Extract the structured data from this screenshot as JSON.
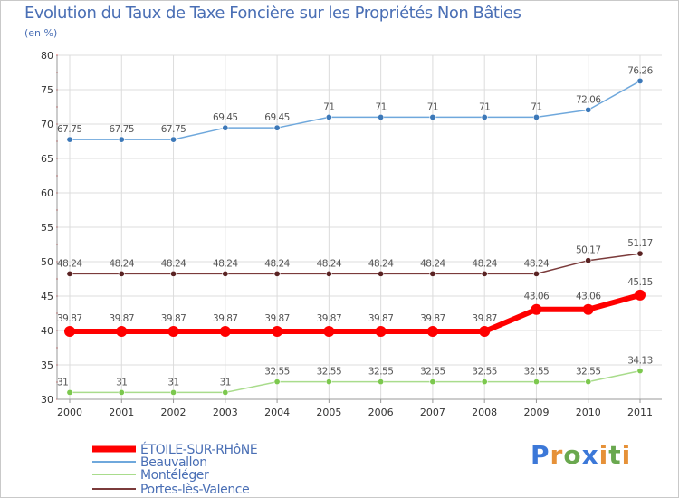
{
  "chart_data": {
    "type": "line",
    "title": "Evolution du Taux de Taxe Foncière sur les Propriétés Non Bâties",
    "ylabel": "(en %)",
    "xlabel": "",
    "ylim": [
      30,
      80
    ],
    "yticks": [
      30,
      35,
      40,
      45,
      50,
      55,
      60,
      65,
      70,
      75,
      80
    ],
    "categories": [
      "2000",
      "2001",
      "2002",
      "2003",
      "2004",
      "2005",
      "2006",
      "2007",
      "2008",
      "2009",
      "2010",
      "2011"
    ],
    "grid": true,
    "legend_position": "bottom-left",
    "series": [
      {
        "name": "Beauvallon",
        "color": "#6fa8dc",
        "marker": "#3c78b8",
        "values": [
          67.75,
          67.75,
          67.75,
          69.45,
          69.45,
          71,
          71,
          71,
          71,
          71,
          72.06,
          76.26
        ],
        "labels": [
          "67.75",
          "67.75",
          "67.75",
          "69.45",
          "69.45",
          "71",
          "71",
          "71",
          "71",
          "71",
          "72.06",
          "76.26"
        ]
      },
      {
        "name": "Portes-lès-Valence",
        "color": "#7b3b3b",
        "marker": "#5a2323",
        "values": [
          48.24,
          48.24,
          48.24,
          48.24,
          48.24,
          48.24,
          48.24,
          48.24,
          48.24,
          48.24,
          50.17,
          51.17
        ],
        "labels": [
          "48.24",
          "48.24",
          "48.24",
          "48.24",
          "48.24",
          "48.24",
          "48.24",
          "48.24",
          "48.24",
          "48.24",
          "50.17",
          "51.17"
        ]
      },
      {
        "name": "ÉTOILE-SUR-RHôNE",
        "color": "#ff0000",
        "marker": "#ff0000",
        "values": [
          39.87,
          39.87,
          39.87,
          39.87,
          39.87,
          39.87,
          39.87,
          39.87,
          39.87,
          43.06,
          43.06,
          45.15
        ],
        "labels": [
          "39.87",
          "39.87",
          "39.87",
          "39.87",
          "39.87",
          "39.87",
          "39.87",
          "39.87",
          "39.87",
          "43.06",
          "43.06",
          "45.15"
        ]
      },
      {
        "name": "Montéléger",
        "color": "#a9dc8c",
        "marker": "#7cc84e",
        "values": [
          31,
          31,
          31,
          31,
          32.55,
          32.55,
          32.55,
          32.55,
          32.55,
          32.55,
          32.55,
          34.13
        ],
        "labels": [
          "31",
          "31",
          "31",
          "31",
          "32.55",
          "32.55",
          "32.55",
          "32.55",
          "32.55",
          "32.55",
          "32.55",
          "34.13"
        ]
      }
    ],
    "legend": [
      "ÉTOILE-SUR-RHôNE",
      "Beauvallon",
      "Montéléger",
      "Portes-lès-Valence"
    ]
  },
  "brand": {
    "letters": [
      "P",
      "r",
      "o",
      "x",
      "i",
      "t",
      "i"
    ],
    "colors": [
      "#3c78d8",
      "#e69138",
      "#6aa84f",
      "#3c78d8",
      "#e69138",
      "#6aa84f",
      "#e69138"
    ]
  }
}
